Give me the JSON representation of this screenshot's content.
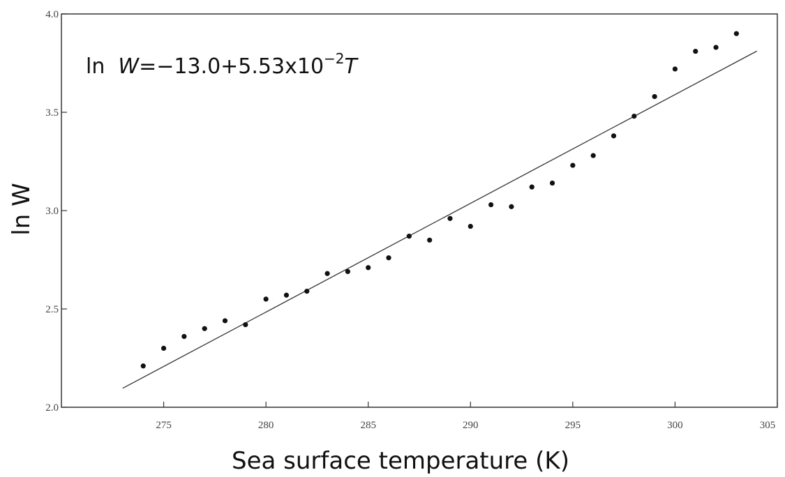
{
  "chart_data": {
    "type": "scatter",
    "xlabel": "Sea surface temperature (K)",
    "ylabel": "ln W",
    "xlim": [
      270,
      305
    ],
    "ylim": [
      2.0,
      4.0
    ],
    "x_ticks": [
      275,
      280,
      285,
      290,
      295,
      300,
      305
    ],
    "y_ticks": [
      2.0,
      2.5,
      3.0,
      3.5,
      4.0
    ],
    "x_tick_labels": [
      "275",
      "280",
      "285",
      "290",
      "295",
      "300",
      "305"
    ],
    "y_tick_labels": [
      "2.0",
      "2.5",
      "3.0",
      "3.5",
      "4.0"
    ],
    "grid": false,
    "annotation": {
      "prefix": "ln  ",
      "variable": "W",
      "equals": "=",
      "body": "−13.0+5.53x10",
      "exponent": "−2",
      "suffix": "T"
    },
    "points": {
      "x": [
        274,
        275,
        276,
        277,
        278,
        279,
        280,
        281,
        282,
        283,
        284,
        285,
        286,
        287,
        288,
        289,
        290,
        291,
        292,
        293,
        294,
        295,
        296,
        297,
        298,
        299,
        300,
        301,
        302,
        303
      ],
      "y": [
        2.21,
        2.3,
        2.36,
        2.4,
        2.44,
        2.42,
        2.55,
        2.57,
        2.59,
        2.68,
        2.69,
        2.71,
        2.76,
        2.87,
        2.85,
        2.96,
        2.92,
        3.03,
        3.02,
        3.12,
        3.14,
        3.23,
        3.28,
        3.38,
        3.48,
        3.58,
        3.72,
        3.81,
        3.83,
        3.9
      ]
    },
    "fit_line": {
      "intercept": -13.0,
      "slope": 0.0553,
      "x_range": [
        273,
        304
      ]
    },
    "colors": {
      "points": "#111111",
      "line": "#333333",
      "axes": "#333333"
    }
  }
}
